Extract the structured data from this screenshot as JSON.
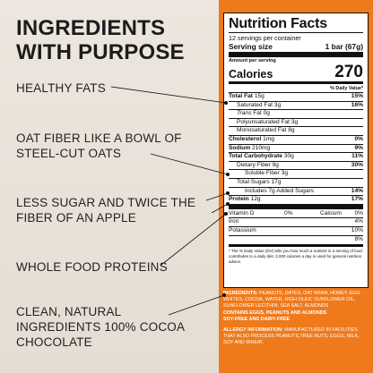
{
  "headline": "INGREDIENTS WITH PURPOSE",
  "claims": [
    "HEALTHY FATS",
    "OAT FIBER LIKE A BOWL OF STEEL-CUT OATS",
    "LESS SUGAR AND TWICE THE FIBER OF AN APPLE",
    "WHOLE FOOD PROTEINS",
    "CLEAN, NATURAL INGREDIENTS 100% COCOA CHOCOLATE"
  ],
  "colors": {
    "accent": "#ee7a1c",
    "left_bg": "#e8e1d8",
    "text": "#1c1c1c"
  },
  "facts": {
    "title": "Nutrition Facts",
    "servings": "12 servings per container",
    "serving_size_label": "Serving size",
    "serving_size_value": "1 bar (67g)",
    "amount_label": "Amount per serving",
    "calories_label": "Calories",
    "calories_value": "270",
    "dv_header": "% Daily Value*",
    "rows": [
      {
        "name": "Total Fat",
        "amount": "15g",
        "dv": "15%"
      },
      {
        "name": "Saturated Fat",
        "amount": "3g",
        "dv": "16%"
      },
      {
        "name": "Trans",
        "amount": "Fat 0g",
        "dv": ""
      },
      {
        "name": "Polyunsaturated Fat",
        "amount": "3g",
        "dv": ""
      },
      {
        "name": "Monosaturated Fat",
        "amount": "8g",
        "dv": ""
      },
      {
        "name": "Cholesterol",
        "amount": "1mg",
        "dv": "0%"
      },
      {
        "name": "Sodium",
        "amount": "210mg",
        "dv": "9%"
      },
      {
        "name": "Total Carbohydrate",
        "amount": "30g",
        "dv": "11%"
      },
      {
        "name": "Dietary Fiber",
        "amount": "9g",
        "dv": "30%"
      },
      {
        "name": "Soluble Fiber",
        "amount": "3g",
        "dv": ""
      },
      {
        "name": "Total Sugars",
        "amount": "17g",
        "dv": ""
      },
      {
        "name": "Includes 7g Added Sugars",
        "amount": "",
        "dv": "14%"
      },
      {
        "name": "Protein",
        "amount": "12g",
        "dv": "17%"
      }
    ],
    "vitamins": [
      {
        "name": "Vitamin D",
        "dv": "0%",
        "name2": "Calcium",
        "dv2": "0%"
      },
      {
        "name": "Iron",
        "dv": "",
        "name2": "",
        "dv2": "4%"
      },
      {
        "name": "Potassium",
        "dv": "",
        "name2": "",
        "dv2": "10%"
      },
      {
        "name": "",
        "dv": "",
        "name2": "",
        "dv2": "8%"
      }
    ],
    "footnote": "* The % Daily Value (DV) tells you how much a nutrient in a serving of food contributes to a daily diet. 2,000 calories a day is used for general nutrition advice."
  },
  "ingredients": {
    "label": "INGREDIENTS:",
    "text": "PEANUTS, DATES, OAT BRAN, HONEY, EGG WHITES, COCOA, WATER, HIGH OLEIC SUNFLOWER OIL, SUNFLOWER LECITHIN, SEA SALT, ALMONDS",
    "contains": "CONTAINS EGGS, PEANUTS AND ALMONDS",
    "free_from": "SOY-FREE AND DAIRY-FREE",
    "allergy_label": "ALLERGY INFORMATION:",
    "allergy_text": "MANUFACTURED IN FACILITIES THAT ALSO PROCESS PEANUTS,TREE NUTS, EGGS, MILK, SOY AND WHEAT."
  }
}
